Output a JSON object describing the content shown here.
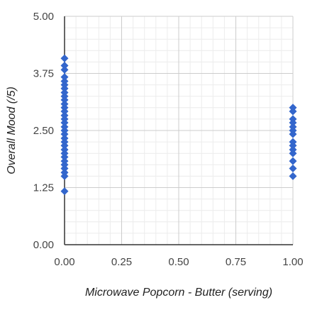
{
  "chart_data": {
    "type": "scatter",
    "xlabel": "Microwave Popcorn - Butter (serving)",
    "ylabel": "Overall Mood (/5)",
    "xlim": [
      0,
      1
    ],
    "ylim": [
      0,
      5
    ],
    "x_ticks": [
      "0.00",
      "0.25",
      "0.50",
      "0.75",
      "1.00"
    ],
    "y_ticks": [
      "0.00",
      "1.25",
      "2.50",
      "3.75",
      "5.00"
    ],
    "grid": true,
    "legend": "none",
    "marker": "diamond",
    "color": "#3366cc",
    "points": [
      {
        "x": 0,
        "y": 1.17
      },
      {
        "x": 0,
        "y": 1.5
      },
      {
        "x": 0,
        "y": 1.58
      },
      {
        "x": 0,
        "y": 1.67
      },
      {
        "x": 0,
        "y": 1.75
      },
      {
        "x": 0,
        "y": 1.83
      },
      {
        "x": 0,
        "y": 1.92
      },
      {
        "x": 0,
        "y": 2.0
      },
      {
        "x": 0,
        "y": 2.08
      },
      {
        "x": 0,
        "y": 2.17
      },
      {
        "x": 0,
        "y": 2.25
      },
      {
        "x": 0,
        "y": 2.33
      },
      {
        "x": 0,
        "y": 2.42
      },
      {
        "x": 0,
        "y": 2.5
      },
      {
        "x": 0,
        "y": 2.58
      },
      {
        "x": 0,
        "y": 2.67
      },
      {
        "x": 0,
        "y": 2.75
      },
      {
        "x": 0,
        "y": 2.83
      },
      {
        "x": 0,
        "y": 2.92
      },
      {
        "x": 0,
        "y": 3.0
      },
      {
        "x": 0,
        "y": 3.08
      },
      {
        "x": 0,
        "y": 3.17
      },
      {
        "x": 0,
        "y": 3.25
      },
      {
        "x": 0,
        "y": 3.33
      },
      {
        "x": 0,
        "y": 3.42
      },
      {
        "x": 0,
        "y": 3.5
      },
      {
        "x": 0,
        "y": 3.58
      },
      {
        "x": 0,
        "y": 3.67
      },
      {
        "x": 0,
        "y": 3.83
      },
      {
        "x": 0,
        "y": 3.92
      },
      {
        "x": 0,
        "y": 4.08
      },
      {
        "x": 1,
        "y": 1.5
      },
      {
        "x": 1,
        "y": 1.67
      },
      {
        "x": 1,
        "y": 1.83
      },
      {
        "x": 1,
        "y": 2.0
      },
      {
        "x": 1,
        "y": 2.08
      },
      {
        "x": 1,
        "y": 2.17
      },
      {
        "x": 1,
        "y": 2.25
      },
      {
        "x": 1,
        "y": 2.42
      },
      {
        "x": 1,
        "y": 2.5
      },
      {
        "x": 1,
        "y": 2.58
      },
      {
        "x": 1,
        "y": 2.67
      },
      {
        "x": 1,
        "y": 2.75
      },
      {
        "x": 1,
        "y": 2.92
      },
      {
        "x": 1,
        "y": 3.0
      }
    ]
  }
}
